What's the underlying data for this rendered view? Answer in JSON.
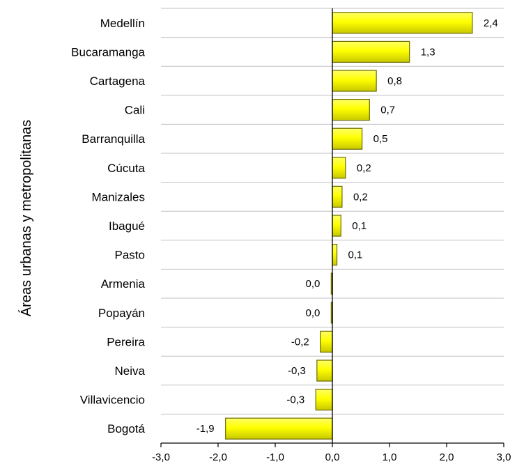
{
  "chart_data": {
    "type": "bar",
    "orientation": "horizontal",
    "title": "",
    "xlabel": "",
    "ylabel": "Áreas urbanas y metropolitanas",
    "categories": [
      "Medellín",
      "Bucaramanga",
      "Cartagena",
      "Cali",
      "Barranquilla",
      "Cúcuta",
      "Manizales",
      "Ibagué",
      "Pasto",
      "Armenia",
      "Popayán",
      "Pereira",
      "Neiva",
      "Villavicencio",
      "Bogotá"
    ],
    "values": [
      2.45,
      1.35,
      0.77,
      0.65,
      0.52,
      0.23,
      0.17,
      0.15,
      0.08,
      -0.02,
      -0.02,
      -0.21,
      -0.27,
      -0.29,
      -1.87
    ],
    "value_labels": [
      "2,4",
      "1,3",
      "0,8",
      "0,7",
      "0,5",
      "0,2",
      "0,2",
      "0,1",
      "0,1",
      "0,0",
      "0,0",
      "-0,2",
      "-0,3",
      "-0,3",
      "-1,9"
    ],
    "xlim": [
      -3.0,
      3.0
    ],
    "x_ticks": [
      -3.0,
      -2.0,
      -1.0,
      0.0,
      1.0,
      2.0,
      3.0
    ],
    "x_tick_labels": [
      "-3,0",
      "-2,0",
      "-1,0",
      "0,0",
      "1,0",
      "2,0",
      "3,0"
    ],
    "grid": true,
    "legend": "none",
    "colors": {
      "bar_fill": "#ffff00",
      "bar_edge": "#6b6b00",
      "grid": "#c0c0c0",
      "axis": "#000000"
    }
  }
}
